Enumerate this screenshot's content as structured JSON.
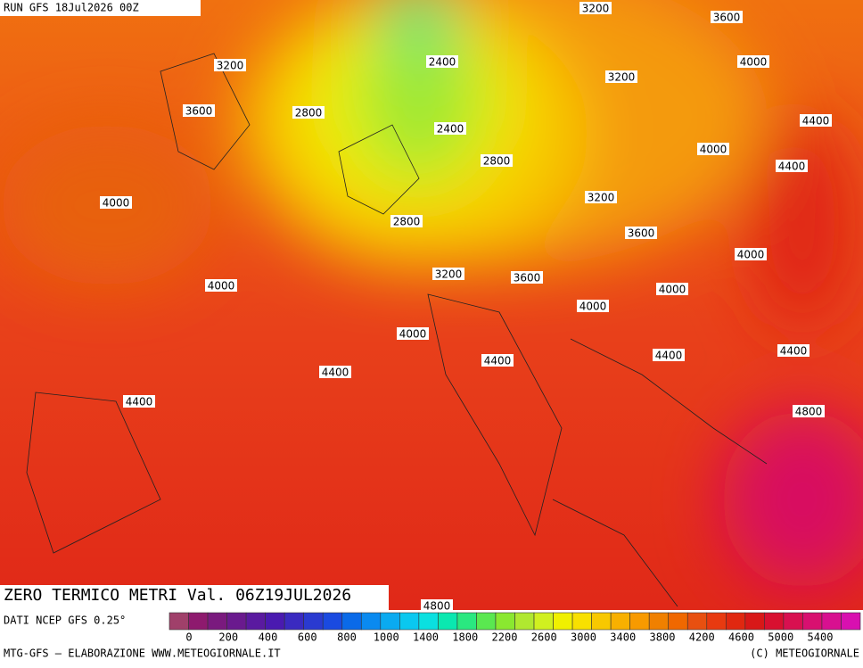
{
  "header": {
    "run": "RUN GFS 18Jul2026 00Z",
    "title": "ZERO TERMICO METRI Val. 06Z19JUL2026"
  },
  "contour_labels": [
    3200,
    3600,
    3200,
    2400,
    4000,
    3200,
    3600,
    2800,
    2400,
    4400,
    4000,
    2800,
    4400,
    4000,
    3200,
    2800,
    3600,
    4000,
    4000,
    3200,
    3600,
    4000,
    4000,
    4000,
    4400,
    4400,
    4400,
    4400,
    4400,
    4800,
    4800
  ],
  "colorbar": {
    "colors": [
      "#a0406a",
      "#8e1a6e",
      "#7a1a7e",
      "#6a1a8e",
      "#5a1aa0",
      "#4a1ab0",
      "#3a2ac0",
      "#2a3ad0",
      "#1a4ae0",
      "#0a6ae8",
      "#0a8af0",
      "#0aaaf0",
      "#0ac8f0",
      "#0ae0e0",
      "#0ae8b0",
      "#2ae880",
      "#5ae850",
      "#8ae830",
      "#b0e830",
      "#d0f020",
      "#f0f000",
      "#f8e000",
      "#f8c800",
      "#f8b000",
      "#f89a00",
      "#f08000",
      "#f06800",
      "#e85010",
      "#e83a10",
      "#e02810",
      "#d81818",
      "#d81030",
      "#d81050",
      "#d81070",
      "#d81090",
      "#d810b0"
    ],
    "labels": [
      0,
      200,
      400,
      600,
      800,
      1000,
      1400,
      1800,
      2200,
      2600,
      3000,
      3400,
      3800,
      4200,
      4600,
      5000,
      5400
    ]
  },
  "footer": {
    "source": "DATI NCEP GFS 0.25°",
    "credit": "MTG-GFS — ELABORAZIONE WWW.METEOGIORNALE.IT",
    "copyright": "(C) METEOGIORNALE"
  }
}
